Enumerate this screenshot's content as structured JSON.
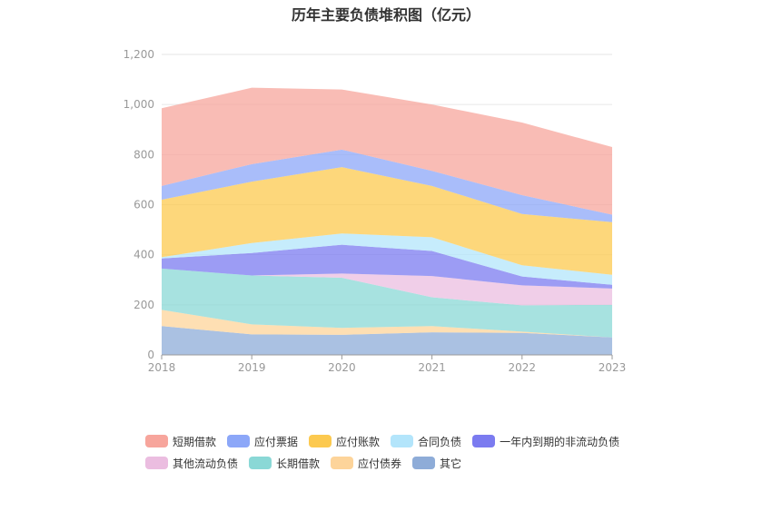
{
  "chart_data": {
    "type": "area",
    "title": "历年主要负债堆积图（亿元）",
    "x": [
      "2018",
      "2019",
      "2020",
      "2021",
      "2022",
      "2023"
    ],
    "ylim": [
      0,
      1200
    ],
    "yticks": [
      "0",
      "200",
      "400",
      "600",
      "800",
      "1,000",
      "1,200"
    ],
    "grid": true,
    "legend_position": "bottom",
    "stacked": true,
    "series": [
      {
        "name": "其它",
        "color": "#8eacd8",
        "values": [
          115,
          82,
          80,
          90,
          88,
          70
        ]
      },
      {
        "name": "应付债券",
        "color": "#fdd49a",
        "values": [
          65,
          40,
          28,
          25,
          5,
          0
        ]
      },
      {
        "name": "长期借款",
        "color": "#8ad8d6",
        "values": [
          165,
          195,
          200,
          115,
          105,
          130
        ]
      },
      {
        "name": "其他流动负债",
        "color": "#ebbde0",
        "values": [
          0,
          0,
          17,
          85,
          80,
          65
        ]
      },
      {
        "name": "一年内到期的非流动负债",
        "color": "#7b7bf0",
        "values": [
          40,
          90,
          115,
          100,
          35,
          15
        ]
      },
      {
        "name": "合同负债",
        "color": "#b3e5fb",
        "values": [
          5,
          40,
          45,
          55,
          45,
          40
        ]
      },
      {
        "name": "应付账款",
        "color": "#fcc94f",
        "values": [
          230,
          245,
          265,
          205,
          205,
          210
        ]
      },
      {
        "name": "应付票据",
        "color": "#8ca7f8",
        "values": [
          55,
          70,
          70,
          60,
          75,
          30
        ]
      },
      {
        "name": "短期借款",
        "color": "#f7a59c",
        "values": [
          310,
          305,
          240,
          265,
          290,
          270
        ]
      }
    ]
  },
  "legend": {
    "rows": [
      [
        {
          "label": "短期借款",
          "color": "#f7a59c"
        },
        {
          "label": "应付票据",
          "color": "#8ca7f8"
        },
        {
          "label": "应付账款",
          "color": "#fcc94f"
        },
        {
          "label": "合同负债",
          "color": "#b3e5fb"
        },
        {
          "label": "一年内到期的非流动负债",
          "color": "#7b7bf0"
        }
      ],
      [
        {
          "label": "其他流动负债",
          "color": "#ebbde0"
        },
        {
          "label": "长期借款",
          "color": "#8ad8d6"
        },
        {
          "label": "应付债券",
          "color": "#fdd49a"
        },
        {
          "label": "其它",
          "color": "#8eacd8"
        }
      ]
    ]
  }
}
